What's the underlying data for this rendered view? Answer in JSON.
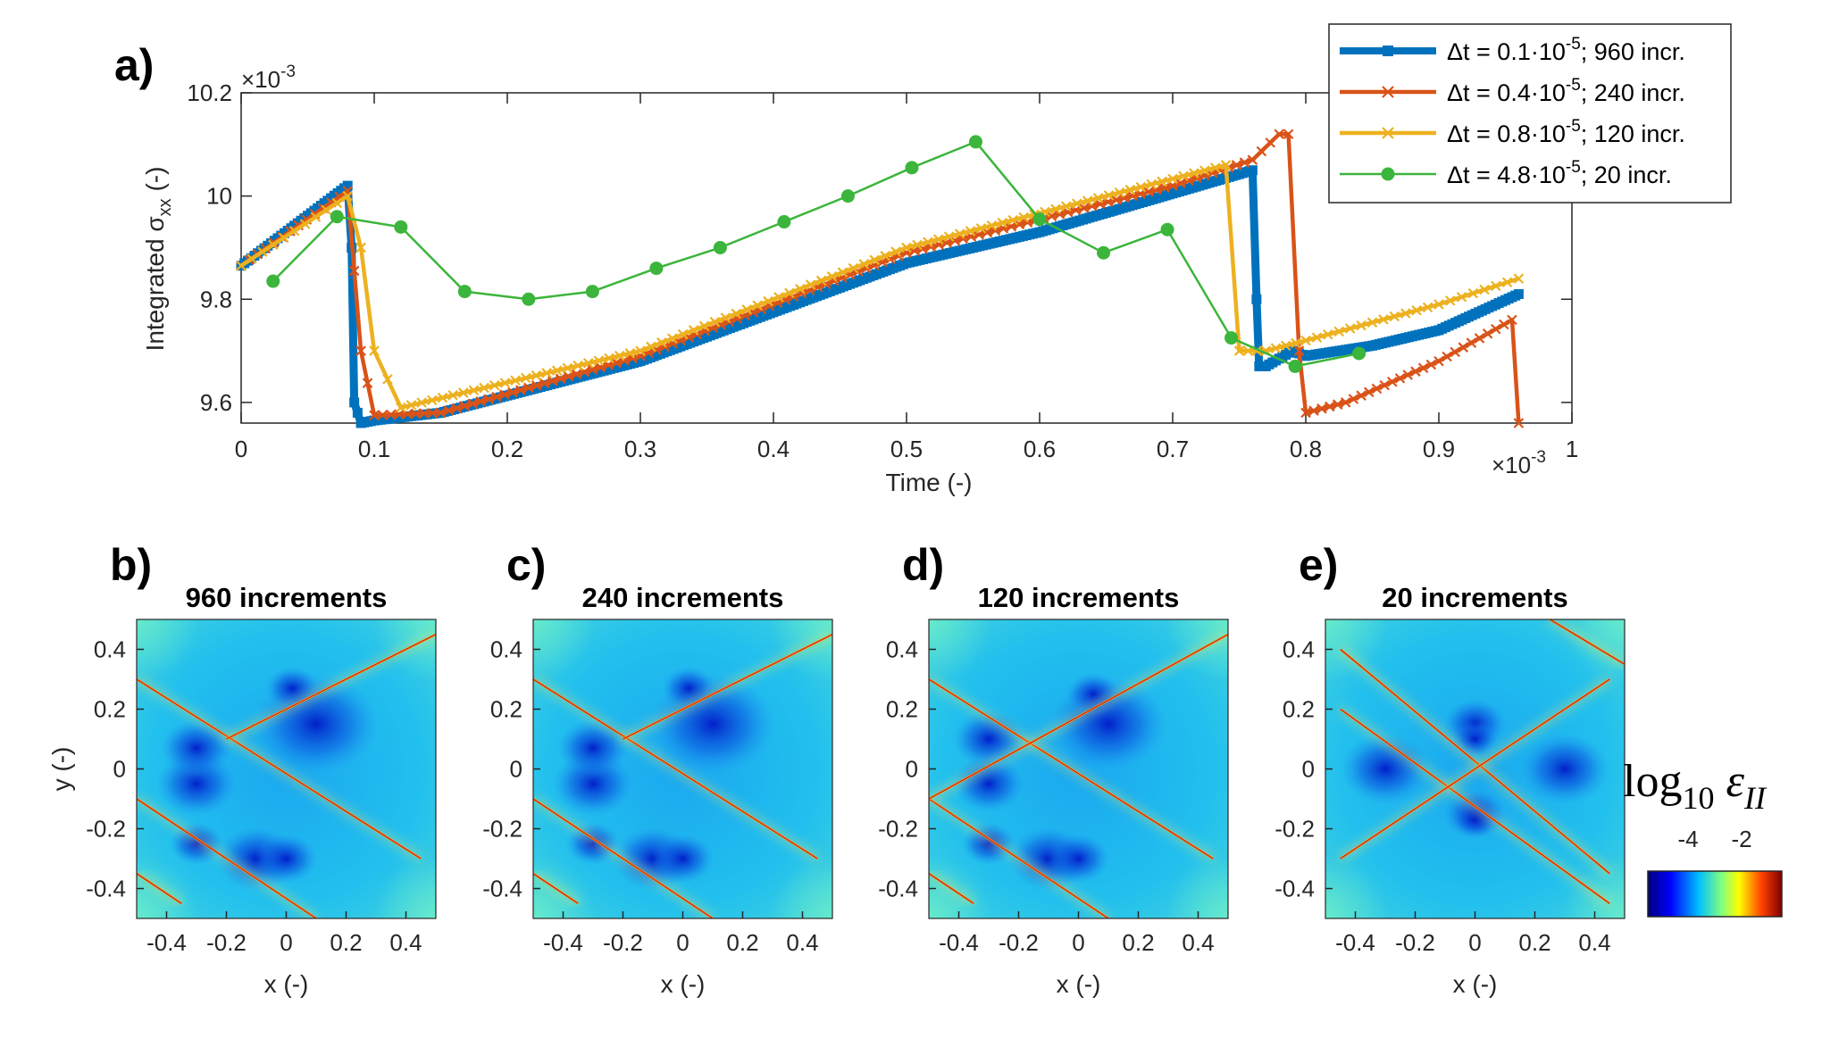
{
  "figure": {
    "panel_a": {
      "letter": "a)",
      "y_exponent": "×10",
      "y_exponent_power": "-3",
      "x_exponent": "×10",
      "x_exponent_power": "-3",
      "ylabel_prefix": "Integrated σ",
      "ylabel_sub": "xx",
      "ylabel_suffix": " (-)",
      "xlabel": "Time (-)"
    },
    "colorbar": {
      "label_main": "log",
      "label_sub": "10",
      "label_var": " ε",
      "label_var_sub": "II",
      "ticks": [
        "-4",
        "-2"
      ],
      "range": [
        -5,
        -1
      ],
      "colors": [
        "#00007f",
        "#0000ff",
        "#00bfff",
        "#80ff80",
        "#ffff00",
        "#ff4000",
        "#7f0000"
      ]
    },
    "maps": [
      {
        "letter": "b)",
        "title": "960 increments",
        "xlabel": "x (-)",
        "ylabel": "y (-)"
      },
      {
        "letter": "c)",
        "title": "240 increments",
        "xlabel": "x (-)",
        "ylabel": ""
      },
      {
        "letter": "d)",
        "title": "120 increments",
        "xlabel": "x (-)",
        "ylabel": ""
      },
      {
        "letter": "e)",
        "title": "20 increments",
        "xlabel": "x (-)",
        "ylabel": ""
      }
    ],
    "map_ticks": {
      "x": [
        "-0.4",
        "-0.2",
        "0",
        "0.2",
        "0.4"
      ],
      "y": [
        "0.4",
        "0.2",
        "0",
        "-0.2",
        "-0.4"
      ]
    }
  },
  "chart_data": [
    {
      "type": "line",
      "title": "",
      "xlabel": "Time (-)",
      "ylabel": "Integrated σxx (-)",
      "x_scale": "×10^-3",
      "y_scale": "×10^-3",
      "xlim": [
        0,
        1
      ],
      "ylim": [
        9.56,
        10.2
      ],
      "x_ticks": [
        "0",
        "0.1",
        "0.2",
        "0.3",
        "0.4",
        "0.5",
        "0.6",
        "0.7",
        "0.8",
        "0.9",
        "1"
      ],
      "y_ticks": [
        "9.6",
        "9.8",
        "10",
        "10.2"
      ],
      "legend_position": "top-right",
      "series": [
        {
          "name": "Δt = 0.1·10-5; 960 incr.",
          "legend_main": "Δt = 0.1·10",
          "legend_power": "-5",
          "legend_rest": "; 960 incr.",
          "color": "#0072BD",
          "marker": "square",
          "x": [
            0.0,
            0.08,
            0.083,
            0.085,
            0.09,
            0.1,
            0.15,
            0.3,
            0.5,
            0.6,
            0.76,
            0.763,
            0.765,
            0.77,
            0.79,
            0.8,
            0.85,
            0.9,
            0.96
          ],
          "y": [
            9.865,
            10.02,
            9.9,
            9.6,
            9.56,
            9.565,
            9.58,
            9.68,
            9.87,
            9.93,
            10.05,
            9.8,
            9.67,
            9.67,
            9.7,
            9.69,
            9.71,
            9.74,
            9.81
          ]
        },
        {
          "name": "Δt = 0.4·10-5; 240 incr.",
          "legend_main": "Δt = 0.4·10",
          "legend_power": "-5",
          "legend_rest": "; 240 incr.",
          "color": "#D95319",
          "marker": "x",
          "x": [
            0.0,
            0.08,
            0.09,
            0.1,
            0.15,
            0.3,
            0.5,
            0.7,
            0.76,
            0.78,
            0.787,
            0.795,
            0.8,
            0.83,
            0.9,
            0.955,
            0.96
          ],
          "y": [
            9.865,
            10.01,
            9.7,
            9.575,
            9.58,
            9.69,
            9.89,
            10.02,
            10.07,
            10.12,
            10.12,
            9.7,
            9.58,
            9.6,
            9.68,
            9.76,
            9.56
          ]
        },
        {
          "name": "Δt = 0.8·10-5; 120 incr.",
          "legend_main": "Δt = 0.8·10",
          "legend_power": "-5",
          "legend_rest": "; 120 incr.",
          "color": "#EDB120",
          "marker": "x",
          "x": [
            0.0,
            0.08,
            0.09,
            0.1,
            0.12,
            0.3,
            0.5,
            0.74,
            0.75,
            0.77,
            0.8,
            0.9,
            0.96
          ],
          "y": [
            9.865,
            10.0,
            9.9,
            9.7,
            9.59,
            9.7,
            9.9,
            10.06,
            9.7,
            9.7,
            9.72,
            9.79,
            9.84
          ]
        },
        {
          "name": "Δt = 4.8·10-5; 20 incr.",
          "legend_main": "Δt = 4.8·10",
          "legend_power": "-5",
          "legend_rest": "; 20 incr.",
          "color": "#3BB53B",
          "marker": "circle",
          "x": [
            0.024,
            0.072,
            0.12,
            0.168,
            0.216,
            0.264,
            0.312,
            0.36,
            0.408,
            0.456,
            0.504,
            0.552,
            0.6,
            0.648,
            0.696,
            0.744,
            0.792,
            0.84
          ],
          "y": [
            9.835,
            9.96,
            9.94,
            9.815,
            9.8,
            9.815,
            9.86,
            9.9,
            9.95,
            10.0,
            10.055,
            10.105,
            9.955,
            9.89,
            9.935,
            9.725,
            9.67,
            9.695
          ]
        }
      ]
    }
  ]
}
